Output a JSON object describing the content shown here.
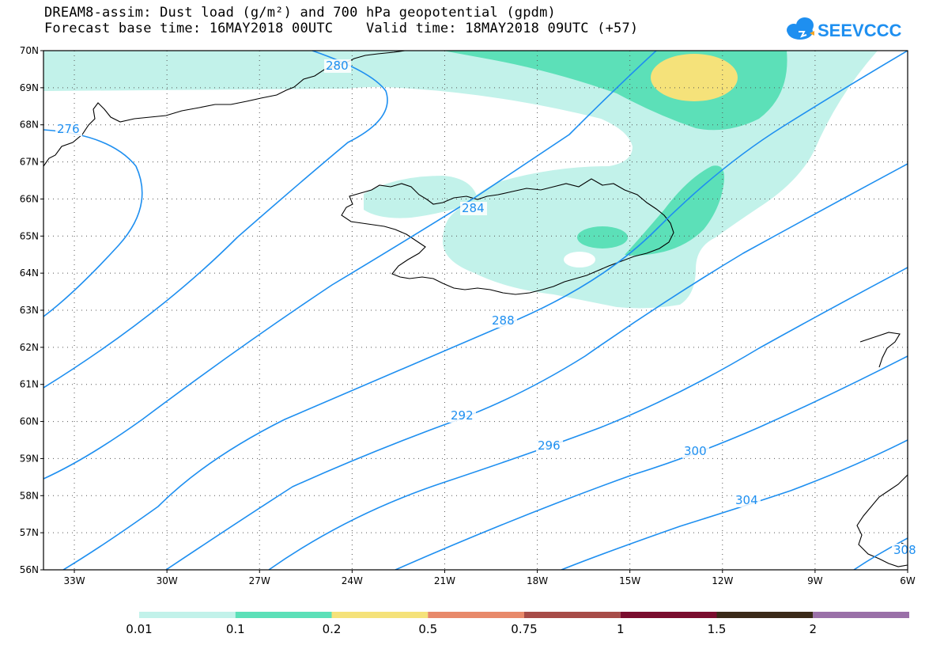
{
  "title": {
    "line1": "DREAM8-assim: Dust load (g/m²) and 700 hPa geopotential (gpdm)",
    "line2": "Forecast base time: 16MAY2018 00UTC    Valid time: 18MAY2018 09UTC (+57)"
  },
  "logo": {
    "text": "SEEVCCC",
    "color": "#1e8ff0"
  },
  "map": {
    "lat_labels": [
      "70N",
      "69N",
      "68N",
      "67N",
      "66N",
      "65N",
      "64N",
      "63N",
      "62N",
      "61N",
      "60N",
      "59N",
      "58N",
      "57N",
      "56N"
    ],
    "lon_labels": [
      "33W",
      "30W",
      "27W",
      "24W",
      "21W",
      "18W",
      "15W",
      "12W",
      "9W",
      "6W"
    ],
    "contour_color": "#1e8ff0",
    "contour_labels": [
      "276",
      "280",
      "284",
      "288",
      "292",
      "296",
      "300",
      "304",
      "308"
    ]
  },
  "colorbar": {
    "labels": [
      "0.01",
      "0.1",
      "0.2",
      "0.5",
      "0.75",
      "1",
      "1.5",
      "2"
    ],
    "colors": [
      "#c2f2ea",
      "#5ce0b8",
      "#f5e27a",
      "#e8896a",
      "#a74c48",
      "#7a0d2e",
      "#3a2a18",
      "#9a70a8"
    ]
  }
}
